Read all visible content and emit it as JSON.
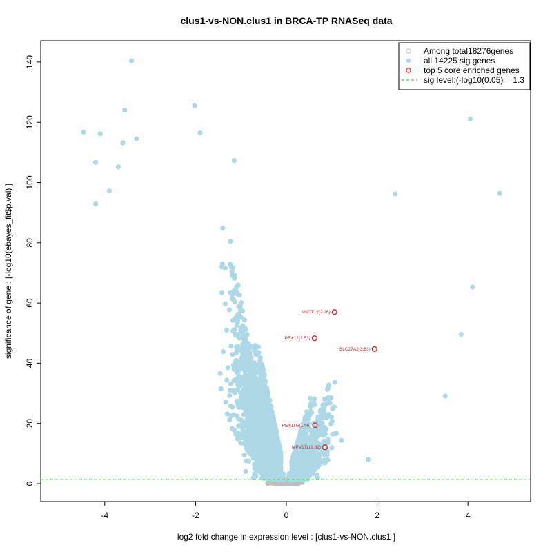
{
  "chart_data": {
    "type": "scatter",
    "title": "clus1-vs-NON.clus1 in BRCA-TP RNASeq data",
    "xlabel": "log2 fold change in expression level : [clus1-vs-NON.clus1 ]",
    "ylabel": "significance of gene : [-log10(ebayes_fit$p.val) ]",
    "xlim": [
      -5.4,
      5.4
    ],
    "ylim": [
      -5.5,
      147.5
    ],
    "xticks": [
      -4,
      -2,
      0,
      2,
      4
    ],
    "yticks": [
      0,
      20,
      40,
      60,
      80,
      100,
      120,
      140
    ],
    "sig_level": 1.3,
    "colors": {
      "background": "#bebebe",
      "significant": "#add8e6",
      "core": "#e31a1c",
      "sig_line": "#00cd00",
      "label": "#c81e1e"
    },
    "legend": {
      "position": "top-right",
      "entries": [
        {
          "label": "Among total18276genes",
          "marker": "open-circle-gray"
        },
        {
          "label": "all 14225 sig genes",
          "marker": "filled-circle-lightblue"
        },
        {
          "label": "top 5 core enriched genes",
          "marker": "open-circle-red"
        },
        {
          "label": "sig level:(-log10(0.05)==1.3",
          "marker": "dashed-line-green"
        }
      ]
    },
    "core_genes": [
      {
        "label": "NUDT12(2.16)",
        "x": 1.06,
        "y": 57.0
      },
      {
        "label": "PEX12(1.53)",
        "x": 0.62,
        "y": 48.3
      },
      {
        "label": "SLC27A2(3.83)",
        "x": 1.94,
        "y": 44.7
      },
      {
        "label": "PEX11G(1.56)",
        "x": 0.63,
        "y": 19.4
      },
      {
        "label": "MPV17L(1.82)",
        "x": 0.85,
        "y": 12.1
      }
    ],
    "notable_points": [
      {
        "x": -3.41,
        "y": 140.4
      },
      {
        "x": -2.02,
        "y": 125.5
      },
      {
        "x": -3.56,
        "y": 124.0
      },
      {
        "x": -4.47,
        "y": 116.7
      },
      {
        "x": -4.1,
        "y": 116.2
      },
      {
        "x": -1.9,
        "y": 116.5
      },
      {
        "x": -3.6,
        "y": 113.2
      },
      {
        "x": -3.3,
        "y": 114.5
      },
      {
        "x": -4.2,
        "y": 106.7
      },
      {
        "x": -3.7,
        "y": 105.2
      },
      {
        "x": -1.15,
        "y": 107.3
      },
      {
        "x": -3.9,
        "y": 97.2
      },
      {
        "x": -4.2,
        "y": 92.9
      },
      {
        "x": 4.05,
        "y": 121.1
      },
      {
        "x": 4.7,
        "y": 96.4
      },
      {
        "x": 2.4,
        "y": 96.2
      },
      {
        "x": 4.1,
        "y": 65.3
      },
      {
        "x": 3.85,
        "y": 49.6
      },
      {
        "x": 3.5,
        "y": 29.1
      },
      {
        "x": 1.8,
        "y": 8.0
      }
    ]
  }
}
